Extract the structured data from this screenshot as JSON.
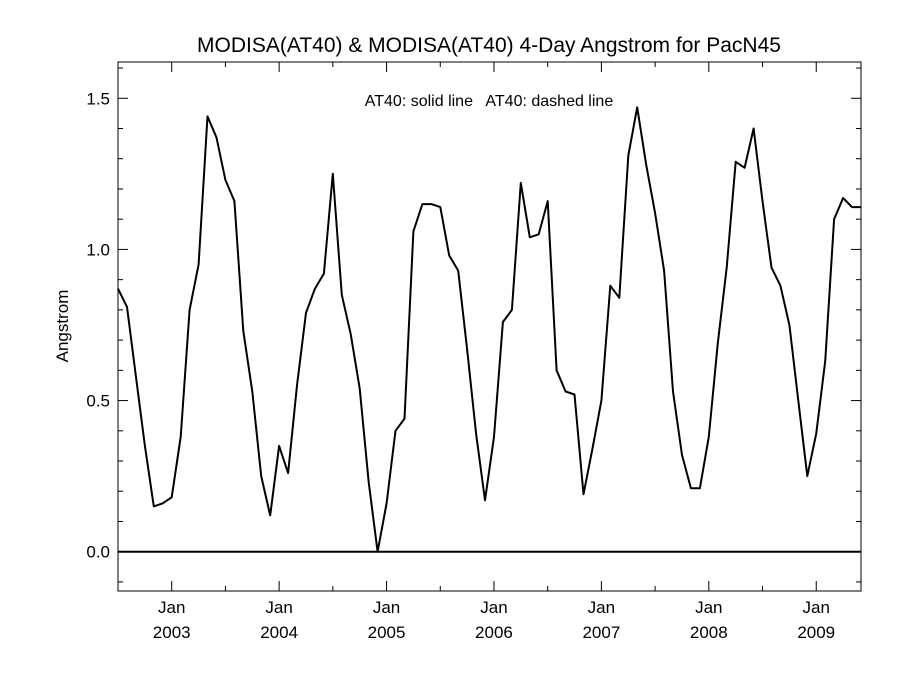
{
  "chart_data": {
    "type": "line",
    "title": "MODISA(AT40) & MODISA(AT40) 4-Day Angstrom for PacN45",
    "legend_text": "AT40: solid line   AT40: dashed line",
    "xlabel": "",
    "ylabel": "Angstrom",
    "xlim": [
      "2002-07-01",
      "2009-06-01"
    ],
    "ylim": [
      -0.13,
      1.62
    ],
    "y_ticks": [
      0.0,
      0.5,
      1.0,
      1.5
    ],
    "y_tick_labels": [
      "0.0",
      "0.5",
      "1.0",
      "1.5"
    ],
    "x_ticks": [
      "2003-01-01",
      "2004-01-01",
      "2005-01-01",
      "2006-01-01",
      "2007-01-01",
      "2008-01-01",
      "2009-01-01"
    ],
    "x_tick_labels": [
      {
        "month": "Jan",
        "year": "2003"
      },
      {
        "month": "Jan",
        "year": "2004"
      },
      {
        "month": "Jan",
        "year": "2005"
      },
      {
        "month": "Jan",
        "year": "2006"
      },
      {
        "month": "Jan",
        "year": "2007"
      },
      {
        "month": "Jan",
        "year": "2008"
      },
      {
        "month": "Jan",
        "year": "2009"
      }
    ],
    "series": [
      {
        "style": "solid",
        "color": "#000000",
        "x": [
          "2002-07-01",
          "2002-08-01",
          "2002-09-01",
          "2002-10-01",
          "2002-11-01",
          "2002-12-01",
          "2003-01-01",
          "2003-02-01",
          "2003-03-01",
          "2003-04-01",
          "2003-05-01",
          "2003-06-01",
          "2003-07-01",
          "2003-08-01",
          "2003-09-01",
          "2003-10-01",
          "2003-11-01",
          "2003-12-01",
          "2004-01-01",
          "2004-02-01",
          "2004-03-01",
          "2004-04-01",
          "2004-05-01",
          "2004-06-01",
          "2004-07-01",
          "2004-08-01",
          "2004-09-01",
          "2004-10-01",
          "2004-11-01",
          "2004-12-01",
          "2005-01-01",
          "2005-02-01",
          "2005-03-01",
          "2005-04-01",
          "2005-05-01",
          "2005-06-01",
          "2005-07-01",
          "2005-08-01",
          "2005-09-01",
          "2005-10-01",
          "2005-11-01",
          "2005-12-01",
          "2006-01-01",
          "2006-02-01",
          "2006-03-01",
          "2006-04-01",
          "2006-05-01",
          "2006-06-01",
          "2006-07-01",
          "2006-08-01",
          "2006-09-01",
          "2006-10-01",
          "2006-11-01",
          "2006-12-01",
          "2007-01-01",
          "2007-02-01",
          "2007-03-01",
          "2007-04-01",
          "2007-05-01",
          "2007-06-01",
          "2007-07-01",
          "2007-08-01",
          "2007-09-01",
          "2007-10-01",
          "2007-11-01",
          "2007-12-01",
          "2008-01-01",
          "2008-02-01",
          "2008-03-01",
          "2008-04-01",
          "2008-05-01",
          "2008-06-01",
          "2008-07-01",
          "2008-08-01",
          "2008-09-01",
          "2008-10-01",
          "2008-11-01",
          "2008-12-01",
          "2009-01-01",
          "2009-02-01",
          "2009-03-01",
          "2009-04-01",
          "2009-05-01",
          "2009-06-01"
        ],
        "y": [
          0.87,
          0.81,
          0.58,
          0.35,
          0.15,
          0.16,
          0.18,
          0.38,
          0.8,
          0.95,
          1.44,
          1.37,
          1.23,
          1.16,
          0.73,
          0.53,
          0.25,
          0.12,
          0.35,
          0.26,
          0.55,
          0.79,
          0.87,
          0.92,
          1.25,
          0.85,
          0.72,
          0.54,
          0.23,
          0.0,
          0.16,
          0.4,
          0.44,
          1.06,
          1.15,
          1.15,
          1.14,
          0.98,
          0.93,
          0.67,
          0.39,
          0.17,
          0.38,
          0.76,
          0.8,
          1.22,
          1.04,
          1.05,
          1.16,
          0.6,
          0.53,
          0.52,
          0.19,
          0.34,
          0.5,
          0.88,
          0.84,
          1.31,
          1.47,
          1.28,
          1.12,
          0.93,
          0.53,
          0.32,
          0.21,
          0.21,
          0.38,
          0.69,
          0.94,
          1.29,
          1.27,
          1.4,
          1.16,
          0.94,
          0.88,
          0.75,
          0.5,
          0.25,
          0.39,
          0.63,
          1.1,
          1.17,
          1.14,
          1.14
        ]
      }
    ]
  }
}
